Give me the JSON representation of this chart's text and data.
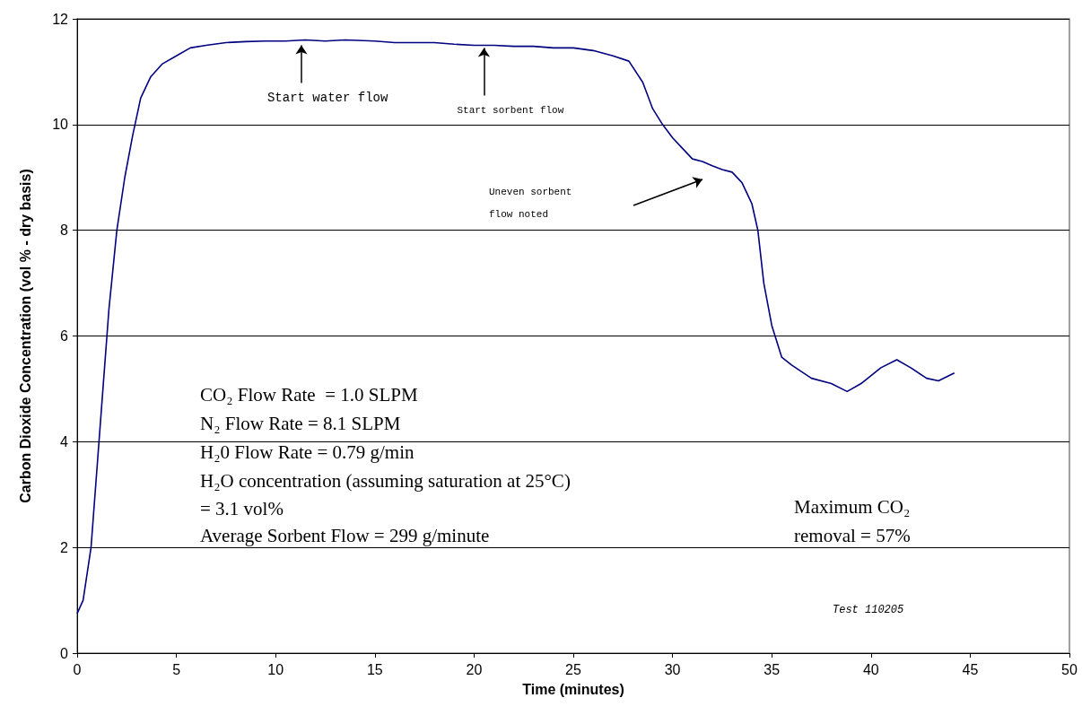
{
  "chart_data": {
    "type": "line",
    "xlabel": "Time (minutes)",
    "ylabel": "Carbon Dioxide Concentration (vol % - dry basis)",
    "xlim": [
      0,
      50
    ],
    "xticks": [
      0,
      5,
      10,
      15,
      20,
      25,
      30,
      35,
      40,
      45,
      50
    ],
    "ylim": [
      0,
      12
    ],
    "yticks": [
      0,
      2,
      4,
      6,
      8,
      10,
      12
    ],
    "grid": "y",
    "marker": "none",
    "line_style": "solid",
    "series": [
      {
        "color": "#000080",
        "x": [
          0,
          0.3,
          0.7,
          1.0,
          1.3,
          1.6,
          2.0,
          2.4,
          2.8,
          3.2,
          3.7,
          4.3,
          5.0,
          5.7,
          6.5,
          7.5,
          8.5,
          9.5,
          10.5,
          11.5,
          12.5,
          13.5,
          15,
          16,
          17,
          18,
          19,
          20,
          21,
          22,
          23,
          24,
          25,
          26,
          27,
          27.8,
          28.5,
          29,
          29.5,
          30,
          30.5,
          31,
          31.5,
          32,
          32.5,
          33,
          33.5,
          34,
          34.3,
          34.6,
          35,
          35.5,
          36,
          37,
          38,
          38.8,
          39.5,
          40.5,
          41.3,
          42,
          42.8,
          43.4,
          44.2
        ],
        "values": [
          0.75,
          1.0,
          2.0,
          3.5,
          5.0,
          6.5,
          8.0,
          9.0,
          9.8,
          10.5,
          10.9,
          11.15,
          11.3,
          11.45,
          11.5,
          11.55,
          11.57,
          11.58,
          11.58,
          11.6,
          11.58,
          11.6,
          11.58,
          11.55,
          11.55,
          11.55,
          11.52,
          11.5,
          11.5,
          11.48,
          11.48,
          11.45,
          11.45,
          11.4,
          11.3,
          11.2,
          10.8,
          10.3,
          10.0,
          9.75,
          9.55,
          9.35,
          9.3,
          9.22,
          9.15,
          9.1,
          8.9,
          8.5,
          8.0,
          7.0,
          6.2,
          5.6,
          5.45,
          5.2,
          5.1,
          4.95,
          5.1,
          5.4,
          5.55,
          5.4,
          5.2,
          5.15,
          5.3
        ]
      }
    ],
    "annotations": [
      {
        "text": "Start water flow",
        "x": 11.3,
        "y": 11.55
      },
      {
        "text": "Start sorbent flow",
        "x": 20.5,
        "y": 11.5
      },
      "Uneven sorbent flow noted",
      "CO₂ Flow Rate  = 1.0 SLPM",
      "N₂ Flow Rate = 8.1 SLPM",
      "H₂0 Flow Rate = 0.79 g/min",
      "H₂O concentration (assuming saturation at 25°C)",
      "= 3.1 vol%",
      "Average Sorbent Flow = 299 g/minute",
      "Maximum CO₂ removal = 57%",
      "Test 110205"
    ]
  }
}
